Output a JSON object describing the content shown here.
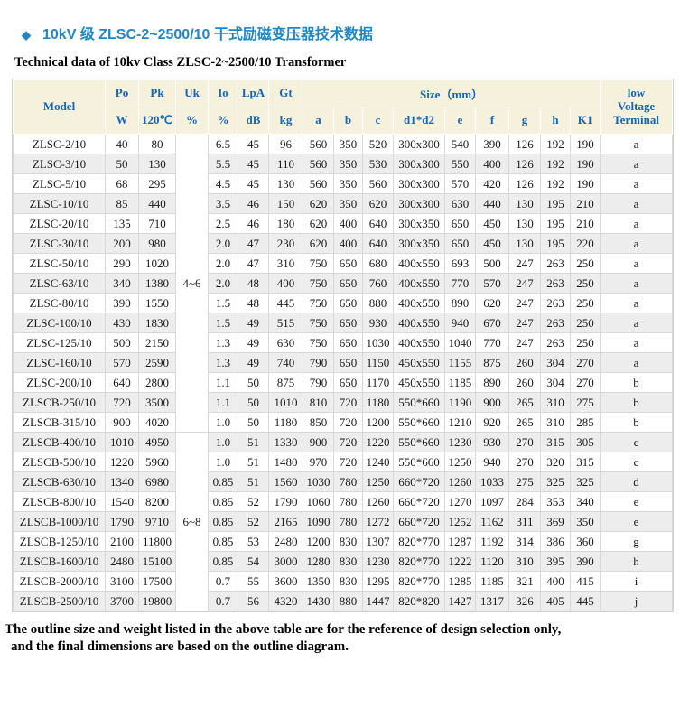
{
  "page": {
    "title_zh": "10kV 级 ZLSC-2~2500/10 干式励磁变压器技术数据",
    "title_en": "Technical data of 10kv Class ZLSC-2~2500/10 Transformer",
    "bullet": "◆",
    "footer_line1": "The outline size and weight listed in the above table are for the reference of design selection only,",
    "footer_line2": "and the final dimensions are based on the outline diagram.",
    "colors": {
      "title_blue": "#1d87c9",
      "header_text_blue": "#1565bd",
      "header_bg": "#f5f1dd",
      "row_stripe": "#ededed",
      "grid_line": "#d8d8d8"
    }
  },
  "table": {
    "header": {
      "model": "Model",
      "size_group": "Size（mm）",
      "terminal_lines": [
        "low",
        "Voltage",
        "Terminal"
      ],
      "params": [
        {
          "top": "Po",
          "bottom": "W"
        },
        {
          "top": "Pk",
          "bottom": "120℃"
        },
        {
          "top": "Uk",
          "bottom": "%"
        },
        {
          "top": "Io",
          "bottom": "%"
        },
        {
          "top": "LpA",
          "bottom": "dB"
        },
        {
          "top": "Gt",
          "bottom": "kg"
        }
      ],
      "size_cols": [
        "a",
        "b",
        "c",
        "d1*d2",
        "e",
        "f",
        "g",
        "h",
        "K1"
      ]
    },
    "uk_groups": [
      {
        "label": "4~6",
        "span": 15
      },
      {
        "label": "6~8",
        "span": 9
      }
    ],
    "rows": [
      [
        "ZLSC-2/10",
        "40",
        "80",
        "6.5",
        "45",
        "96",
        "560",
        "350",
        "520",
        "300x300",
        "540",
        "390",
        "126",
        "192",
        "190",
        "a"
      ],
      [
        "ZLSC-3/10",
        "50",
        "130",
        "5.5",
        "45",
        "110",
        "560",
        "350",
        "530",
        "300x300",
        "550",
        "400",
        "126",
        "192",
        "190",
        "a"
      ],
      [
        "ZLSC-5/10",
        "68",
        "295",
        "4.5",
        "45",
        "130",
        "560",
        "350",
        "560",
        "300x300",
        "570",
        "420",
        "126",
        "192",
        "190",
        "a"
      ],
      [
        "ZLSC-10/10",
        "85",
        "440",
        "3.5",
        "46",
        "150",
        "620",
        "350",
        "620",
        "300x300",
        "630",
        "440",
        "130",
        "195",
        "210",
        "a"
      ],
      [
        "ZLSC-20/10",
        "135",
        "710",
        "2.5",
        "46",
        "180",
        "620",
        "400",
        "640",
        "300x350",
        "650",
        "450",
        "130",
        "195",
        "210",
        "a"
      ],
      [
        "ZLSC-30/10",
        "200",
        "980",
        "2.0",
        "47",
        "230",
        "620",
        "400",
        "640",
        "300x350",
        "650",
        "450",
        "130",
        "195",
        "220",
        "a"
      ],
      [
        "ZLSC-50/10",
        "290",
        "1020",
        "2.0",
        "47",
        "310",
        "750",
        "650",
        "680",
        "400x550",
        "693",
        "500",
        "247",
        "263",
        "250",
        "a"
      ],
      [
        "ZLSC-63/10",
        "340",
        "1380",
        "2.0",
        "48",
        "400",
        "750",
        "650",
        "760",
        "400x550",
        "770",
        "570",
        "247",
        "263",
        "250",
        "a"
      ],
      [
        "ZLSC-80/10",
        "390",
        "1550",
        "1.5",
        "48",
        "445",
        "750",
        "650",
        "880",
        "400x550",
        "890",
        "620",
        "247",
        "263",
        "250",
        "a"
      ],
      [
        "ZLSC-100/10",
        "430",
        "1830",
        "1.5",
        "49",
        "515",
        "750",
        "650",
        "930",
        "400x550",
        "940",
        "670",
        "247",
        "263",
        "250",
        "a"
      ],
      [
        "ZLSC-125/10",
        "500",
        "2150",
        "1.3",
        "49",
        "630",
        "750",
        "650",
        "1030",
        "400x550",
        "1040",
        "770",
        "247",
        "263",
        "250",
        "a"
      ],
      [
        "ZLSC-160/10",
        "570",
        "2590",
        "1.3",
        "49",
        "740",
        "790",
        "650",
        "1150",
        "450x550",
        "1155",
        "875",
        "260",
        "304",
        "270",
        "a"
      ],
      [
        "ZLSC-200/10",
        "640",
        "2800",
        "1.1",
        "50",
        "875",
        "790",
        "650",
        "1170",
        "450x550",
        "1185",
        "890",
        "260",
        "304",
        "270",
        "b"
      ],
      [
        "ZLSCB-250/10",
        "720",
        "3500",
        "1.1",
        "50",
        "1010",
        "810",
        "720",
        "1180",
        "550*660",
        "1190",
        "900",
        "265",
        "310",
        "275",
        "b"
      ],
      [
        "ZLSCB-315/10",
        "900",
        "4020",
        "1.0",
        "50",
        "1180",
        "850",
        "720",
        "1200",
        "550*660",
        "1210",
        "920",
        "265",
        "310",
        "285",
        "b"
      ],
      [
        "ZLSCB-400/10",
        "1010",
        "4950",
        "1.0",
        "51",
        "1330",
        "900",
        "720",
        "1220",
        "550*660",
        "1230",
        "930",
        "270",
        "315",
        "305",
        "c"
      ],
      [
        "ZLSCB-500/10",
        "1220",
        "5960",
        "1.0",
        "51",
        "1480",
        "970",
        "720",
        "1240",
        "550*660",
        "1250",
        "940",
        "270",
        "320",
        "315",
        "c"
      ],
      [
        "ZLSCB-630/10",
        "1340",
        "6980",
        "0.85",
        "51",
        "1560",
        "1030",
        "780",
        "1250",
        "660*720",
        "1260",
        "1033",
        "275",
        "325",
        "325",
        "d"
      ],
      [
        "ZLSCB-800/10",
        "1540",
        "8200",
        "0.85",
        "52",
        "1790",
        "1060",
        "780",
        "1260",
        "660*720",
        "1270",
        "1097",
        "284",
        "353",
        "340",
        "e"
      ],
      [
        "ZLSCB-1000/10",
        "1790",
        "9710",
        "0.85",
        "52",
        "2165",
        "1090",
        "780",
        "1272",
        "660*720",
        "1252",
        "1162",
        "311",
        "369",
        "350",
        "e"
      ],
      [
        "ZLSCB-1250/10",
        "2100",
        "11800",
        "0.85",
        "53",
        "2480",
        "1200",
        "830",
        "1307",
        "820*770",
        "1287",
        "1192",
        "314",
        "386",
        "360",
        "g"
      ],
      [
        "ZLSCB-1600/10",
        "2480",
        "15100",
        "0.85",
        "54",
        "3000",
        "1280",
        "830",
        "1230",
        "820*770",
        "1222",
        "1120",
        "310",
        "395",
        "390",
        "h"
      ],
      [
        "ZLSCB-2000/10",
        "3100",
        "17500",
        "0.7",
        "55",
        "3600",
        "1350",
        "830",
        "1295",
        "820*770",
        "1285",
        "1185",
        "321",
        "400",
        "415",
        "i"
      ],
      [
        "ZLSCB-2500/10",
        "3700",
        "19800",
        "0.7",
        "56",
        "4320",
        "1430",
        "880",
        "1447",
        "820*820",
        "1427",
        "1317",
        "326",
        "405",
        "445",
        "j"
      ]
    ]
  }
}
